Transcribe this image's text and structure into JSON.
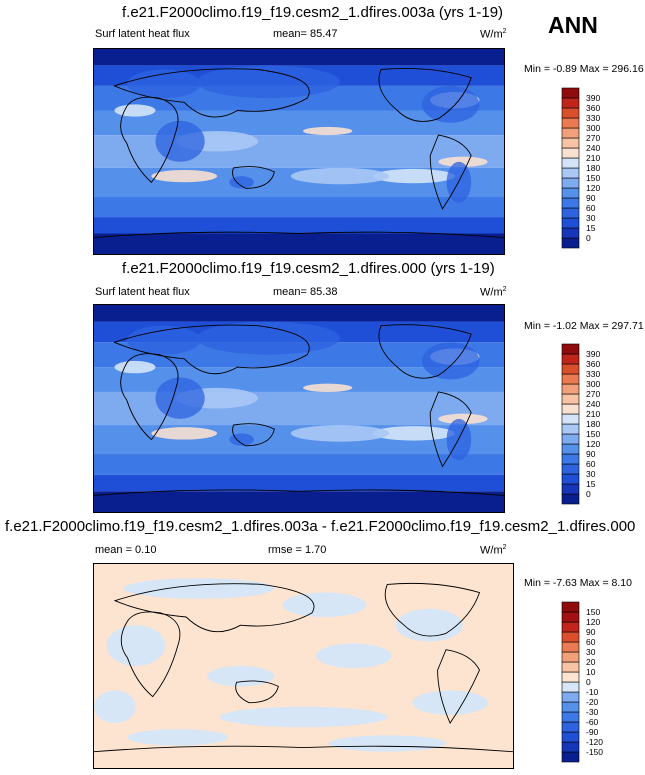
{
  "season": "ANN",
  "panels": [
    {
      "title": "f.e21.F2000climo.f19_f19.cesm2_1.dfires.003a (yrs 1-19)",
      "left_label": "Surf latent heat flux",
      "stat1": "mean=  85.47",
      "stat2": "",
      "units": "W/m",
      "units_sup": "2",
      "minmax": "Min = -0.89 Max = 296.16",
      "scale": "abs"
    },
    {
      "title": "f.e21.F2000climo.f19_f19.cesm2_1.dfires.000 (yrs 1-19)",
      "left_label": "Surf latent heat flux",
      "stat1": "mean=  85.38",
      "stat2": "",
      "units": "W/m",
      "units_sup": "2",
      "minmax": "Min = -1.02 Max = 297.71",
      "scale": "abs"
    },
    {
      "title": "f.e21.F2000climo.f19_f19.cesm2_1.dfires.003a - f.e21.F2000climo.f19_f19.cesm2_1.dfires.000",
      "left_label": "mean =  0.10",
      "stat1": "rmse =  1.70",
      "stat2": "",
      "units": "W/m",
      "units_sup": "2",
      "minmax": "Min = -7.63 Max =  8.10",
      "scale": "diff"
    }
  ],
  "chart_data": [
    {
      "type": "heatmap",
      "title": "f.e21.F2000climo.f19_f19.cesm2_1.dfires.003a (yrs 1-19)",
      "variable": "Surf latent heat flux",
      "units": "W/m2",
      "mean": 85.47,
      "min": -0.89,
      "max": 296.16,
      "levels": [
        0,
        15,
        30,
        60,
        90,
        120,
        150,
        180,
        210,
        240,
        270,
        300,
        330,
        360,
        390
      ],
      "colors": [
        "#0a1f8f",
        "#1536b8",
        "#1f4fd6",
        "#2e63e0",
        "#3c78e6",
        "#5590ea",
        "#7eaaf0",
        "#a9c8f5",
        "#d3e4f8",
        "#f8e0d0",
        "#f6c3a3",
        "#f2a07a",
        "#eb7a52",
        "#db4f2d",
        "#c0241a",
        "#8e0c0c"
      ]
    },
    {
      "type": "heatmap",
      "title": "f.e21.F2000climo.f19_f19.cesm2_1.dfires.000 (yrs 1-19)",
      "variable": "Surf latent heat flux",
      "units": "W/m2",
      "mean": 85.38,
      "min": -1.02,
      "max": 297.71,
      "levels": [
        0,
        15,
        30,
        60,
        90,
        120,
        150,
        180,
        210,
        240,
        270,
        300,
        330,
        360,
        390
      ],
      "colors": [
        "#0a1f8f",
        "#1536b8",
        "#1f4fd6",
        "#2e63e0",
        "#3c78e6",
        "#5590ea",
        "#7eaaf0",
        "#a9c8f5",
        "#d3e4f8",
        "#f8e0d0",
        "#f6c3a3",
        "#f2a07a",
        "#eb7a52",
        "#db4f2d",
        "#c0241a",
        "#8e0c0c"
      ]
    },
    {
      "type": "heatmap",
      "title": "f.e21.F2000climo.f19_f19.cesm2_1.dfires.003a - f.e21.F2000climo.f19_f19.cesm2_1.dfires.000",
      "units": "W/m2",
      "mean": 0.1,
      "rmse": 1.7,
      "min": -7.63,
      "max": 8.1,
      "levels": [
        -150,
        -120,
        -90,
        -60,
        -30,
        -20,
        -10,
        0,
        10,
        20,
        30,
        60,
        90,
        120,
        150
      ],
      "colors": [
        "#0a1f8f",
        "#1536b8",
        "#1f4fd6",
        "#2e63e0",
        "#3c78e6",
        "#5590ea",
        "#7eaaf0",
        "#d6e6f7",
        "#fde4d0",
        "#f6c3a3",
        "#f2a07a",
        "#eb7a52",
        "#db4f2d",
        "#c0241a",
        "#a31212",
        "#8e0c0c"
      ]
    }
  ]
}
